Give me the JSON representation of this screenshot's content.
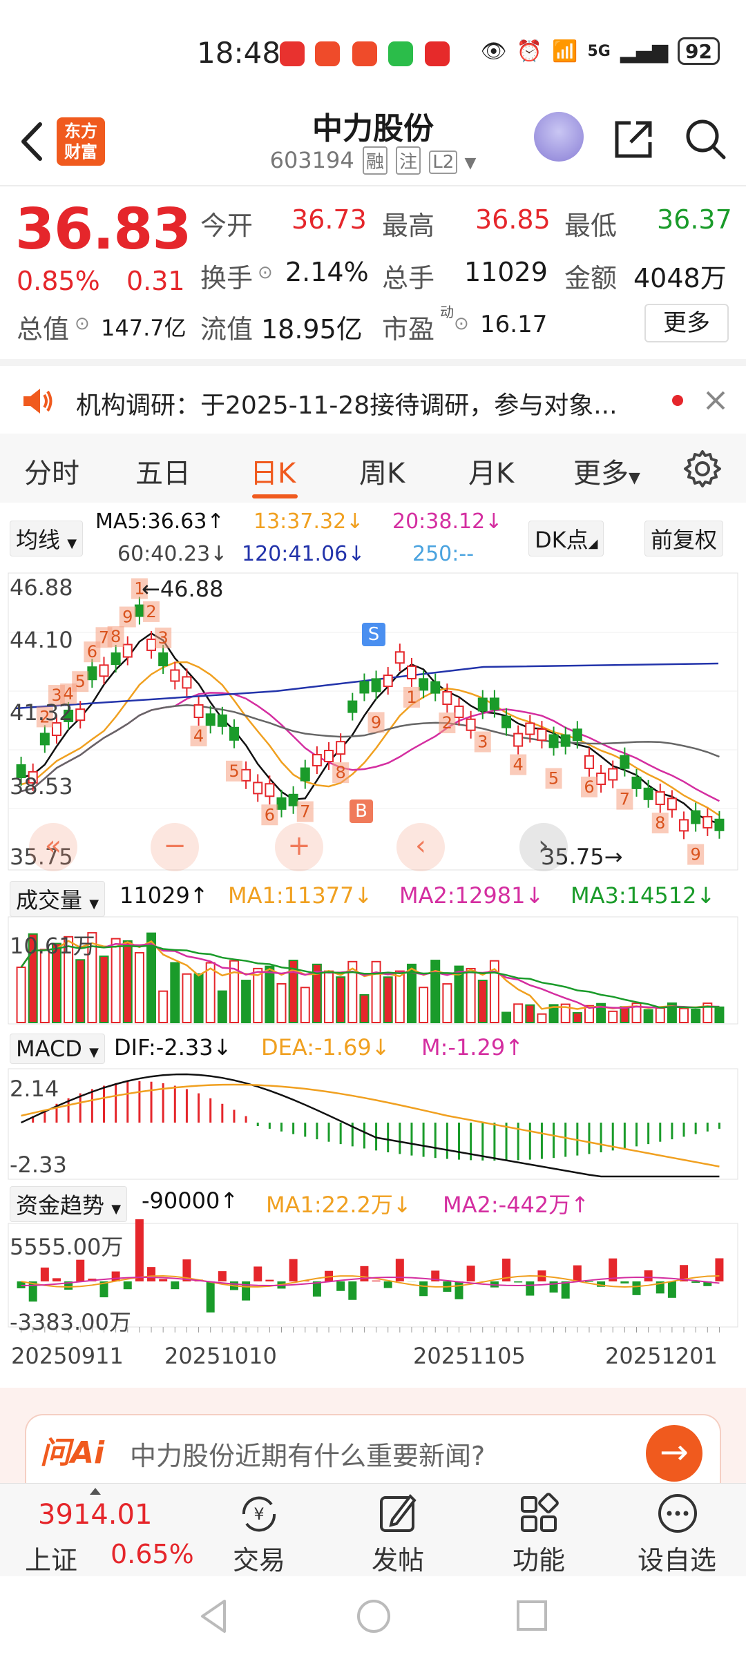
{
  "status_bar": {
    "time": "18:48",
    "battery": "92",
    "network": "5G"
  },
  "header": {
    "stock_name": "中力股份",
    "stock_code": "603194",
    "tags": [
      "融",
      "注",
      "L2"
    ],
    "brand": [
      "东方",
      "财富"
    ]
  },
  "quote": {
    "price": "36.83",
    "change_pct": "0.85%",
    "change": "0.31",
    "fields": [
      {
        "label": "今开",
        "value": "36.73",
        "color": "red"
      },
      {
        "label": "最高",
        "value": "36.85",
        "color": "red"
      },
      {
        "label": "最低",
        "value": "36.37",
        "color": "green"
      },
      {
        "label": "换手",
        "value": "2.14%",
        "color": "black"
      },
      {
        "label": "总手",
        "value": "11029",
        "color": "black"
      },
      {
        "label": "金额",
        "value": "4048万",
        "color": "black"
      },
      {
        "label": "总值",
        "value": "147.7亿",
        "color": "black"
      },
      {
        "label": "流值",
        "value": "18.95亿",
        "color": "black"
      },
      {
        "label": "市盈",
        "value": "16.17",
        "color": "black"
      },
      {
        "label_sup": "动"
      }
    ],
    "more_label": "更多"
  },
  "notice": {
    "text": "机构调研：于2025-11-28接待调研，参与对象..."
  },
  "tabs": [
    "分时",
    "五日",
    "日K",
    "周K",
    "月K",
    "更多"
  ],
  "active_tab": "日K",
  "ma_legend": {
    "selector": "均线",
    "ma5": "MA5:36.63↑",
    "ma13": "13:37.32↓",
    "ma20": "20:38.12↓",
    "ma60": "60:40.23↓",
    "ma120": "120:41.06↓",
    "ma250": "250:--",
    "dk": "DK点",
    "adjust": "前复权"
  },
  "kline": {
    "y_labels": [
      "46.88",
      "44.10",
      "41.32",
      "38.53",
      "35.75"
    ],
    "high_marker": "←46.88",
    "low_marker": "35.75→",
    "signal_s": "S",
    "signal_b": "B",
    "td_up": [
      "2",
      "3",
      "4",
      "5",
      "6",
      "7",
      "8",
      "9",
      "1",
      "2",
      "3"
    ],
    "td_down": [
      "4",
      "5",
      "6",
      "7",
      "8",
      "9",
      "1",
      "2",
      "3",
      "4",
      "5",
      "6",
      "7",
      "8",
      "9"
    ]
  },
  "volume": {
    "selector": "成交量",
    "value": "11029↑",
    "ma1": "MA1:11377↓",
    "ma2": "MA2:12981↓",
    "ma3": "MA3:14512↓",
    "y_label": "10.61万"
  },
  "macd": {
    "selector": "MACD",
    "dif": "DIF:-2.33↓",
    "dea": "DEA:-1.69↓",
    "m": "M:-1.29↑",
    "y_top": "2.14",
    "y_bottom": "-2.33"
  },
  "fund": {
    "selector": "资金趋势",
    "value": "-90000↑",
    "ma1": "MA1:22.2万↓",
    "ma2": "MA2:-442万↑",
    "y_top": "5555.00万",
    "y_bottom": "-3383.00万"
  },
  "x_dates": [
    "20250911",
    "20251010",
    "20251105",
    "20251201"
  ],
  "ai_bar": {
    "logo": "问Ai",
    "placeholder": "中力股份近期有什么重要新闻?"
  },
  "bottom_nav": {
    "index_value": "3914.01",
    "index_name": "上证",
    "index_pct": "0.65%",
    "items": [
      "交易",
      "发帖",
      "功能",
      "设自选"
    ]
  },
  "colors": {
    "up": "#e5262b",
    "down": "#1a9b2a",
    "accent": "#f05a1e",
    "ma5": "#111111",
    "ma13": "#f0a020",
    "ma20": "#d42ea0",
    "ma60": "#666666",
    "ma120": "#2233aa",
    "ma250": "#4aa3df"
  }
}
